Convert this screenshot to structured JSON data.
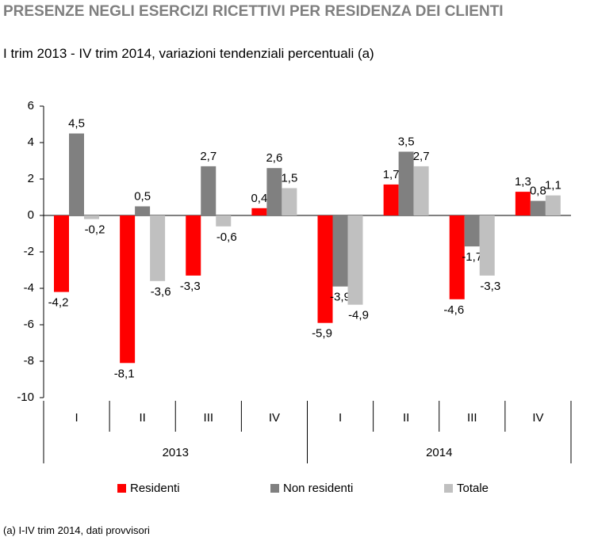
{
  "chart_data": {
    "type": "bar",
    "title": "PRESENZE NEGLI ESERCIZI RICETTIVI PER RESIDENZA DEI CLIENTI",
    "subtitle": "I trim 2013 - IV trim 2014, variazioni tendenziali percentuali (a)",
    "note": "(a) I-IV trim 2014, dati provvisori",
    "categories": [
      "I",
      "II",
      "III",
      "IV",
      "I",
      "II",
      "III",
      "IV"
    ],
    "groups": [
      "2013",
      "2014"
    ],
    "series": [
      {
        "name": "Residenti",
        "color": "#ff0000",
        "values": [
          -4.2,
          -8.1,
          -3.3,
          0.4,
          -5.9,
          1.7,
          -4.6,
          1.3
        ],
        "value_labels": [
          "-4,2",
          "-8,1",
          "-3,3",
          "0,4",
          "-5,9",
          "1,7",
          "-4,6",
          "1,3"
        ]
      },
      {
        "name": "Non residenti",
        "color": "#808080",
        "values": [
          4.5,
          0.5,
          2.7,
          2.6,
          -3.9,
          3.5,
          -1.7,
          0.8
        ],
        "value_labels": [
          "4,5",
          "0,5",
          "2,7",
          "2,6",
          "-3,9",
          "3,5",
          "-1,7",
          "0,8"
        ]
      },
      {
        "name": "Totale",
        "color": "#c0c0c0",
        "values": [
          -0.2,
          -3.6,
          -0.6,
          1.5,
          -4.9,
          2.7,
          -3.3,
          1.1
        ],
        "value_labels": [
          "-0,2",
          "-3,6",
          "-0,6",
          "1,5",
          "-4,9",
          "2,7",
          "-3,3",
          "1,1"
        ]
      }
    ],
    "ylim": [
      -10,
      6
    ],
    "yticks": [
      -10,
      -8,
      -6,
      -4,
      -2,
      0,
      2,
      4,
      6
    ],
    "legend": "bottom"
  }
}
